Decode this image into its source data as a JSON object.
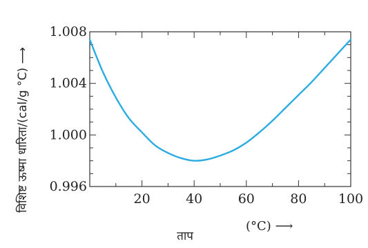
{
  "chart_data": {
    "type": "line",
    "ylabel": "विशिष्ट ऊष्मा धारिता/(cal/g °C) ⟶",
    "xlabel": "ताप",
    "xunit": "(°C) ⟶",
    "xlim": [
      0,
      100
    ],
    "ylim": [
      0.996,
      1.008
    ],
    "xticks": [
      20,
      40,
      60,
      80,
      100
    ],
    "yticks": [
      "0.996",
      "1.000",
      "1.004",
      "1.008"
    ],
    "yticks_values": [
      0.996,
      1.0,
      1.004,
      1.008
    ],
    "grid": false,
    "series": [
      {
        "color": "#29abe2",
        "x": [
          0,
          5,
          10,
          15,
          20,
          25,
          30,
          35,
          40,
          45,
          50,
          55,
          60,
          65,
          70,
          75,
          80,
          85,
          90,
          95,
          100
        ],
        "y": [
          1.0074,
          1.0049,
          1.0029,
          1.0013,
          1.0002,
          0.9992,
          0.9986,
          0.9982,
          0.998,
          0.9981,
          0.9984,
          0.9988,
          0.9994,
          1.0002,
          1.0011,
          1.0021,
          1.0031,
          1.0041,
          1.0052,
          1.0063,
          1.0074
        ]
      }
    ]
  }
}
